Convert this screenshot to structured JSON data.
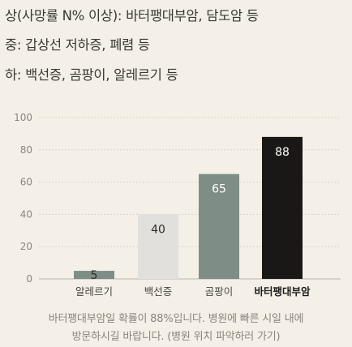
{
  "legend_lines": [
    "상(사망률 N% 이상): 바터팽대부암, 담도암 등",
    "중: 갑상선 저하증, 폐렴 등",
    "하: 백선증, 곰팡이, 알레르기 등"
  ],
  "chart_data": {
    "type": "bar",
    "categories": [
      "알레르기",
      "백선증",
      "곰팡이",
      "바터팽대부암"
    ],
    "values": [
      5,
      40,
      65,
      88
    ],
    "data_labels": [
      "5",
      "40",
      "65",
      "88"
    ],
    "bar_colors": [
      "#7e8e87",
      "#e2e0dc",
      "#7e8e87",
      "#1a1816"
    ],
    "label_colors": [
      "#2e2b28",
      "#2e2b28",
      "#ffffff",
      "#ffffff"
    ],
    "highlight_index": 3,
    "ylim": [
      0,
      100
    ],
    "yticks": [
      0,
      20,
      40,
      60,
      80,
      100
    ],
    "grid": true
  },
  "footnote": {
    "line1": "바터팽대부암일 확률이 88%입니다. 병원에 빠른 시일 내에",
    "line2": "방문하시길 바랍니다. (병원 위치 파악하러 가기)"
  }
}
